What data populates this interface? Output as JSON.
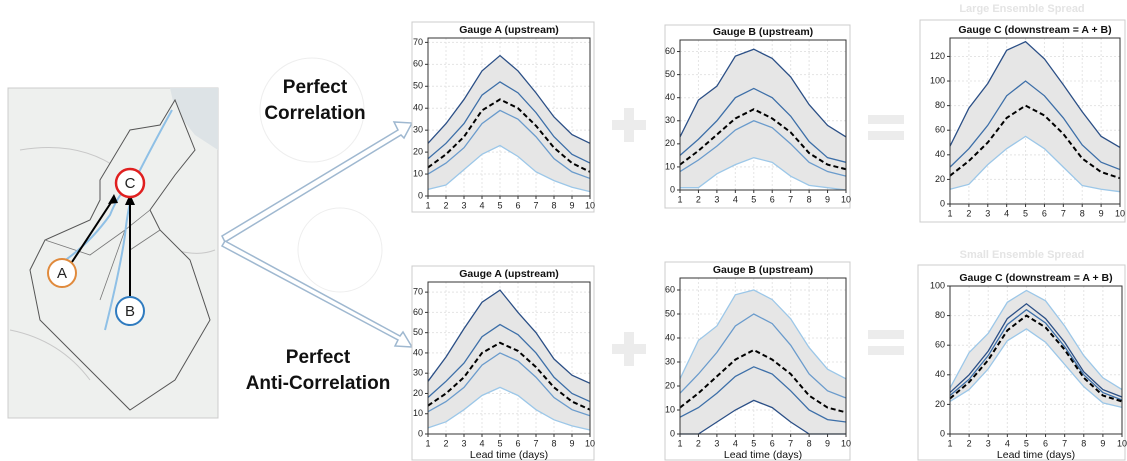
{
  "annotations": {
    "node_a": "A",
    "node_b": "B",
    "node_c": "C",
    "perfect": "Perfect",
    "correlation": "Correlation",
    "perfect_anti": "Perfect",
    "anti_correlation": "Anti-Correlation",
    "large_spread": "Large Ensemble Spread",
    "small_spread": "Small Ensemble Spread"
  },
  "chart_data": [
    {
      "type": "line",
      "title": "Gauge A (upstream)",
      "x": [
        1,
        2,
        3,
        4,
        5,
        6,
        7,
        8,
        9,
        10
      ],
      "xlim": [
        1,
        10
      ],
      "xticks": [
        1,
        2,
        3,
        4,
        5,
        6,
        7,
        8,
        9,
        10
      ],
      "ylim": [
        0,
        72
      ],
      "yticks": [
        0,
        10,
        20,
        30,
        40,
        50,
        60,
        70
      ],
      "grid": true,
      "band_color": "#e6e6e6",
      "series": [
        {
          "color": "#2b4f86",
          "values": [
            24,
            33,
            44,
            57,
            64,
            57,
            47,
            36,
            28,
            24
          ]
        },
        {
          "color": "#9cc7e8",
          "values": [
            3,
            5,
            12,
            19,
            23,
            18,
            11,
            7,
            4,
            2
          ]
        },
        {
          "color": "#3d6fa8",
          "values": [
            17,
            24,
            33,
            46,
            52,
            47,
            38,
            27,
            19,
            15
          ]
        },
        {
          "color": "#6a9bcc",
          "values": [
            10,
            15,
            22,
            33,
            39,
            35,
            27,
            17,
            11,
            8
          ]
        },
        {
          "color": "#000000",
          "dashed": true,
          "values": [
            13,
            19,
            27,
            39,
            44,
            40,
            32,
            22,
            15,
            11
          ]
        }
      ]
    },
    {
      "type": "line",
      "title": "Gauge B (upstream)",
      "x": [
        1,
        2,
        3,
        4,
        5,
        6,
        7,
        8,
        9,
        10
      ],
      "xlim": [
        1,
        10
      ],
      "xticks": [
        1,
        2,
        3,
        4,
        5,
        6,
        7,
        8,
        9,
        10
      ],
      "ylim": [
        0,
        65
      ],
      "yticks": [
        0,
        10,
        20,
        30,
        40,
        50,
        60
      ],
      "grid": true,
      "band_color": "#e6e6e6",
      "series": [
        {
          "color": "#2b4f86",
          "values": [
            23,
            39,
            45,
            58,
            61,
            57,
            49,
            37,
            28,
            23
          ]
        },
        {
          "color": "#9cc7e8",
          "values": [
            1,
            1,
            7,
            11,
            14,
            12,
            6,
            2,
            1,
            0
          ]
        },
        {
          "color": "#3d6fa8",
          "values": [
            15,
            22,
            30,
            40,
            44,
            40,
            32,
            21,
            14,
            12
          ]
        },
        {
          "color": "#6a9bcc",
          "values": [
            8,
            13,
            19,
            26,
            30,
            27,
            20,
            12,
            8,
            6
          ]
        },
        {
          "color": "#000000",
          "dashed": true,
          "values": [
            11,
            17,
            24,
            31,
            35,
            31,
            25,
            16,
            11,
            9
          ]
        }
      ]
    },
    {
      "type": "line",
      "title": "Gauge C (downstream = A + B)",
      "x": [
        1,
        2,
        3,
        4,
        5,
        6,
        7,
        8,
        9,
        10
      ],
      "xlim": [
        1,
        10
      ],
      "xticks": [
        1,
        2,
        3,
        4,
        5,
        6,
        7,
        8,
        9,
        10
      ],
      "ylim": [
        0,
        135
      ],
      "yticks": [
        0,
        20,
        40,
        60,
        80,
        100,
        120
      ],
      "grid": true,
      "band_color": "#e6e6e6",
      "series": [
        {
          "color": "#2b4f86",
          "values": [
            47,
            78,
            98,
            125,
            132,
            118,
            97,
            75,
            55,
            46
          ]
        },
        {
          "color": "#9cc7e8",
          "values": [
            12,
            16,
            32,
            45,
            55,
            45,
            30,
            15,
            12,
            10
          ]
        },
        {
          "color": "#3d6fa8",
          "values": [
            30,
            45,
            64,
            88,
            100,
            88,
            70,
            48,
            34,
            28
          ]
        },
        {
          "color": "#000000",
          "dashed": true,
          "values": [
            23,
            35,
            50,
            70,
            80,
            72,
            57,
            37,
            26,
            21
          ]
        }
      ]
    },
    {
      "type": "line",
      "title": "Gauge A (upstream)",
      "xlabel": "Lead time (days)",
      "x": [
        1,
        2,
        3,
        4,
        5,
        6,
        7,
        8,
        9,
        10
      ],
      "xlim": [
        1,
        10
      ],
      "xticks": [
        1,
        2,
        3,
        4,
        5,
        6,
        7,
        8,
        9,
        10
      ],
      "ylim": [
        0,
        75
      ],
      "yticks": [
        0,
        10,
        20,
        30,
        40,
        50,
        60,
        70
      ],
      "grid": true,
      "band_color": "#e6e6e6",
      "series": [
        {
          "color": "#2b4f86",
          "values": [
            26,
            38,
            52,
            65,
            71,
            60,
            50,
            37,
            29,
            25
          ]
        },
        {
          "color": "#9cc7e8",
          "values": [
            3,
            6,
            12,
            19,
            23,
            19,
            12,
            7,
            4,
            2
          ]
        },
        {
          "color": "#3d6fa8",
          "values": [
            18,
            26,
            35,
            48,
            54,
            49,
            40,
            28,
            20,
            16
          ]
        },
        {
          "color": "#6a9bcc",
          "values": [
            11,
            16,
            23,
            34,
            40,
            36,
            28,
            18,
            12,
            9
          ]
        },
        {
          "color": "#000000",
          "dashed": true,
          "values": [
            14,
            20,
            28,
            40,
            45,
            41,
            33,
            23,
            16,
            12
          ]
        }
      ]
    },
    {
      "type": "line",
      "title": "Gauge B (upstream)",
      "xlabel": "Lead time (days)",
      "x": [
        1,
        2,
        3,
        4,
        5,
        6,
        7,
        8,
        9,
        10
      ],
      "xlim": [
        1,
        10
      ],
      "xticks": [
        1,
        2,
        3,
        4,
        5,
        6,
        7,
        8,
        9,
        10
      ],
      "ylim": [
        0,
        65
      ],
      "yticks": [
        0,
        10,
        20,
        30,
        40,
        50,
        60
      ],
      "grid": true,
      "band_color": "#e6e6e6",
      "series": [
        {
          "color": "#9cc7e8",
          "values": [
            23,
            39,
            45,
            58,
            60,
            56,
            48,
            36,
            27,
            23
          ]
        },
        {
          "color": "#2b4f86",
          "values": [
            0,
            0,
            5,
            10,
            14,
            11,
            5,
            0,
            0,
            0
          ]
        },
        {
          "color": "#6a9bcc",
          "values": [
            17,
            25,
            34,
            45,
            50,
            46,
            37,
            25,
            18,
            15
          ]
        },
        {
          "color": "#3d6fa8",
          "values": [
            7,
            11,
            17,
            24,
            28,
            25,
            18,
            10,
            6,
            5
          ]
        },
        {
          "color": "#000000",
          "dashed": true,
          "values": [
            11,
            17,
            24,
            31,
            35,
            31,
            25,
            16,
            11,
            9
          ]
        }
      ]
    },
    {
      "type": "line",
      "title": "Gauge C (downstream = A + B)",
      "xlabel": "Lead time (days)",
      "x": [
        1,
        2,
        3,
        4,
        5,
        6,
        7,
        8,
        9,
        10
      ],
      "xlim": [
        1,
        10
      ],
      "xticks": [
        1,
        2,
        3,
        4,
        5,
        6,
        7,
        8,
        9,
        10
      ],
      "ylim": [
        0,
        100
      ],
      "yticks": [
        0,
        20,
        40,
        60,
        80,
        100
      ],
      "grid": true,
      "band_color": "#e6e6e6",
      "series": [
        {
          "color": "#9cc7e8",
          "values": [
            31,
            55,
            68,
            89,
            97,
            90,
            73,
            53,
            38,
            30
          ]
        },
        {
          "color": "#9cc7e8",
          "values": [
            22,
            30,
            44,
            63,
            71,
            62,
            47,
            32,
            21,
            18
          ]
        },
        {
          "color": "#2b4f86",
          "values": [
            28,
            40,
            56,
            78,
            88,
            78,
            62,
            42,
            30,
            25
          ]
        },
        {
          "color": "#3d6fa8",
          "values": [
            26,
            37,
            53,
            74,
            84,
            75,
            59,
            40,
            28,
            23
          ]
        },
        {
          "color": "#000000",
          "dashed": true,
          "values": [
            24,
            35,
            50,
            70,
            80,
            72,
            57,
            38,
            26,
            22
          ]
        }
      ]
    }
  ]
}
